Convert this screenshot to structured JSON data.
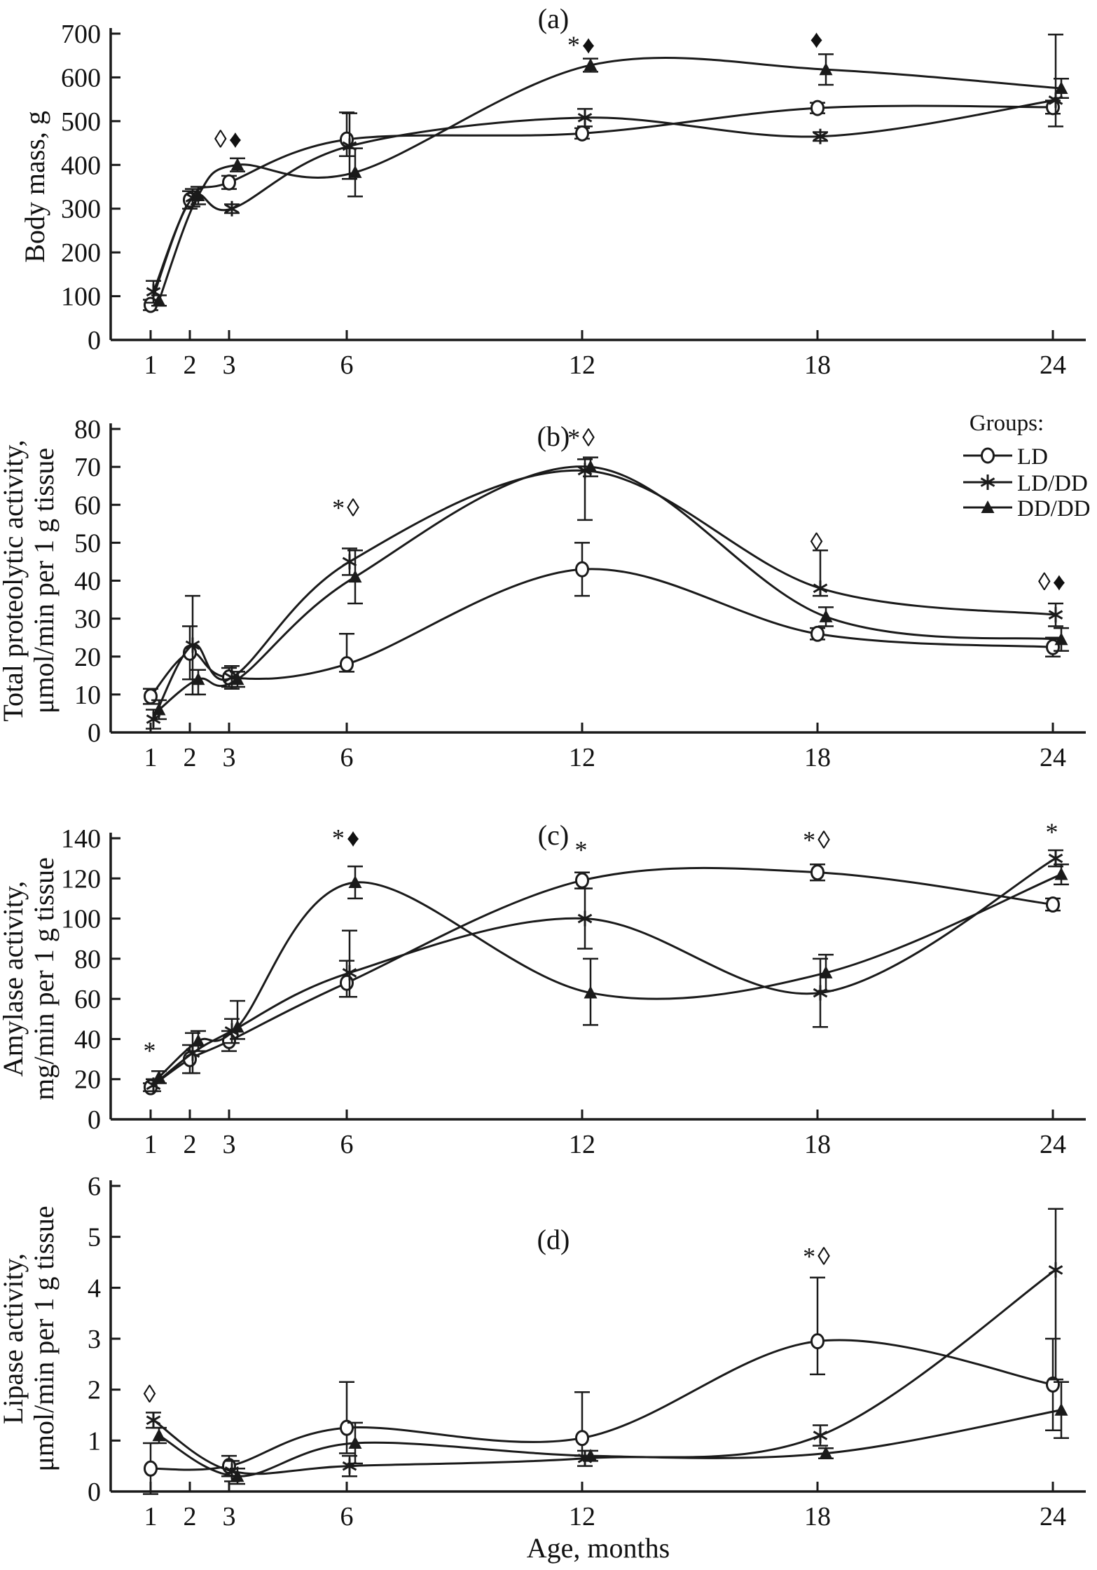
{
  "figure": {
    "x_axis": {
      "title": "Age, months",
      "months": [
        1,
        2,
        3,
        6,
        12,
        18,
        24
      ]
    },
    "legend": {
      "title": "Groups:",
      "items": [
        {
          "label": "LD",
          "marker": "circle"
        },
        {
          "label": "LD/DD",
          "marker": "asterisk"
        },
        {
          "label": "DD/DD",
          "marker": "triangle"
        }
      ]
    },
    "colors": {
      "ink": "#1a1a1a",
      "background": "#ffffff"
    }
  },
  "chart_data": [
    {
      "panel": "a",
      "type": "line",
      "title": "(a)",
      "ylabel_lines": [
        "Body mass, g"
      ],
      "ylim": [
        0,
        700
      ],
      "ytick_step": 100,
      "categories": [
        1,
        2,
        3,
        6,
        12,
        18,
        24
      ],
      "grid": false,
      "series": [
        {
          "name": "LD",
          "marker": "circle",
          "values": [
            80,
            320,
            360,
            458,
            472,
            530,
            532
          ],
          "errors": [
            12,
            20,
            15,
            [
              38,
              62
            ],
            12,
            12,
            15
          ]
        },
        {
          "name": "LD/DD",
          "marker": "asterisk",
          "values": [
            110,
            325,
            300,
            443,
            508,
            465,
            548
          ],
          "errors": [
            25,
            20,
            10,
            75,
            20,
            10,
            [
              60,
              150
            ]
          ]
        },
        {
          "name": "DD/DD",
          "marker": "triangle",
          "values": [
            90,
            330,
            400,
            383,
            628,
            618,
            575
          ],
          "errors": [
            12,
            20,
            15,
            55,
            15,
            35,
            22
          ]
        }
      ],
      "annotations": [
        {
          "month": 3,
          "y": 440,
          "text": "◊♦"
        },
        {
          "month": 12,
          "y": 655,
          "text": "*♦"
        },
        {
          "month": 18,
          "y": 668,
          "text": "♦"
        }
      ]
    },
    {
      "panel": "b",
      "type": "line",
      "title": "(b)",
      "ylabel_lines": [
        "Total proteolytic activity,",
        "μmol/min per 1 g tissue"
      ],
      "ylim": [
        0,
        80
      ],
      "ytick_step": 10,
      "categories": [
        1,
        2,
        3,
        6,
        12,
        18,
        24
      ],
      "grid": false,
      "series": [
        {
          "name": "LD",
          "marker": "circle",
          "values": [
            9.5,
            21,
            14.5,
            18,
            43,
            26,
            22.5
          ],
          "errors": [
            2,
            7,
            2.5,
            [
              2,
              8
            ],
            7,
            1.5,
            2.5
          ]
        },
        {
          "name": "LD/DD",
          "marker": "asterisk",
          "values": [
            3.5,
            23,
            14.5,
            45,
            69,
            38,
            31
          ],
          "errors": [
            2.5,
            13,
            3,
            3.5,
            [
              13,
              3
            ],
            [
              2,
              10
            ],
            3
          ]
        },
        {
          "name": "DD/DD",
          "marker": "triangle",
          "values": [
            6,
            14,
            14,
            41,
            70,
            30.5,
            24.5
          ],
          "errors": [
            2.5,
            [
              4,
              2.5
            ],
            2,
            7,
            2.5,
            2.5,
            3
          ]
        }
      ],
      "annotations": [
        {
          "month": 6,
          "y": 57,
          "text": "*◊"
        },
        {
          "month": 12,
          "y": 75.5,
          "text": "*◊"
        },
        {
          "month": 18,
          "y": 48,
          "text": "◊"
        },
        {
          "month": 24,
          "y": 37.5,
          "text": "◊♦"
        }
      ]
    },
    {
      "panel": "c",
      "type": "line",
      "title": "(c)",
      "ylabel_lines": [
        "Amylase activity,",
        "mg/min per 1 g tissue"
      ],
      "ylim": [
        0,
        140
      ],
      "ytick_step": 20,
      "categories": [
        1,
        2,
        3,
        6,
        12,
        18,
        24
      ],
      "grid": false,
      "series": [
        {
          "name": "LD",
          "marker": "circle",
          "values": [
            16,
            30,
            39,
            68,
            119,
            123,
            107
          ],
          "errors": [
            2,
            7,
            5,
            [
              7,
              11
            ],
            4,
            4,
            3
          ]
        },
        {
          "name": "LD/DD",
          "marker": "asterisk",
          "values": [
            17,
            33,
            44,
            73,
            100,
            63,
            130
          ],
          "errors": [
            3,
            10,
            6,
            [
              12,
              21
            ],
            15,
            17,
            4
          ]
        },
        {
          "name": "DD/DD",
          "marker": "triangle",
          "values": [
            21,
            39,
            46,
            118,
            63,
            73,
            122
          ],
          "errors": [
            3,
            5,
            [
              6,
              13
            ],
            8,
            [
              16,
              17
            ],
            9,
            5
          ]
        }
      ],
      "annotations": [
        {
          "month": 1,
          "y": 30,
          "text": "*"
        },
        {
          "month": 6,
          "y": 136,
          "text": "*♦"
        },
        {
          "month": 12,
          "y": 130,
          "text": "*"
        },
        {
          "month": 18,
          "y": 135,
          "text": "*◊"
        },
        {
          "month": 24,
          "y": 139,
          "text": "*"
        }
      ]
    },
    {
      "panel": "d",
      "type": "line",
      "title": "(d)",
      "ylabel_lines": [
        "Lipase activity,",
        "μmol/min per 1 g tissue"
      ],
      "ylim": [
        0,
        6
      ],
      "ytick_step": 1,
      "categories": [
        1,
        2,
        3,
        6,
        12,
        18,
        24
      ],
      "grid": false,
      "series": [
        {
          "name": "LD",
          "marker": "circle",
          "values": [
            0.45,
            null,
            0.5,
            1.25,
            1.05,
            2.95,
            2.1
          ],
          "errors": [
            0.5,
            null,
            0.2,
            [
              0.5,
              0.9
            ],
            [
              0.35,
              0.9
            ],
            [
              0.65,
              1.25
            ],
            0.9
          ]
        },
        {
          "name": "LD/DD",
          "marker": "asterisk",
          "values": [
            1.4,
            null,
            0.4,
            0.5,
            0.65,
            1.1,
            4.35
          ],
          "errors": [
            0.15,
            null,
            0.2,
            0.2,
            0.15,
            0.2,
            [
              2.15,
              1.2
            ]
          ]
        },
        {
          "name": "DD/DD",
          "marker": "triangle",
          "values": [
            1.1,
            null,
            0.3,
            0.95,
            0.7,
            0.75,
            1.6
          ],
          "errors": [
            0.15,
            null,
            0.15,
            0.4,
            0.1,
            0.1,
            0.55
          ]
        }
      ],
      "annotations": [
        {
          "month": 1,
          "y": 1.75,
          "text": "◊"
        },
        {
          "month": 18,
          "y": 4.45,
          "text": "*◊"
        }
      ]
    }
  ]
}
